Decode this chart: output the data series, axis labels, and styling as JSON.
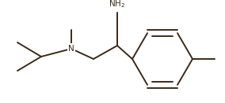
{
  "background_color": "#ffffff",
  "line_color": "#3a2a1a",
  "line_width": 1.4,
  "font_size": 7.5,
  "label_color": "#3a2a1a",
  "figsize": [
    2.84,
    1.31
  ],
  "dpi": 100
}
